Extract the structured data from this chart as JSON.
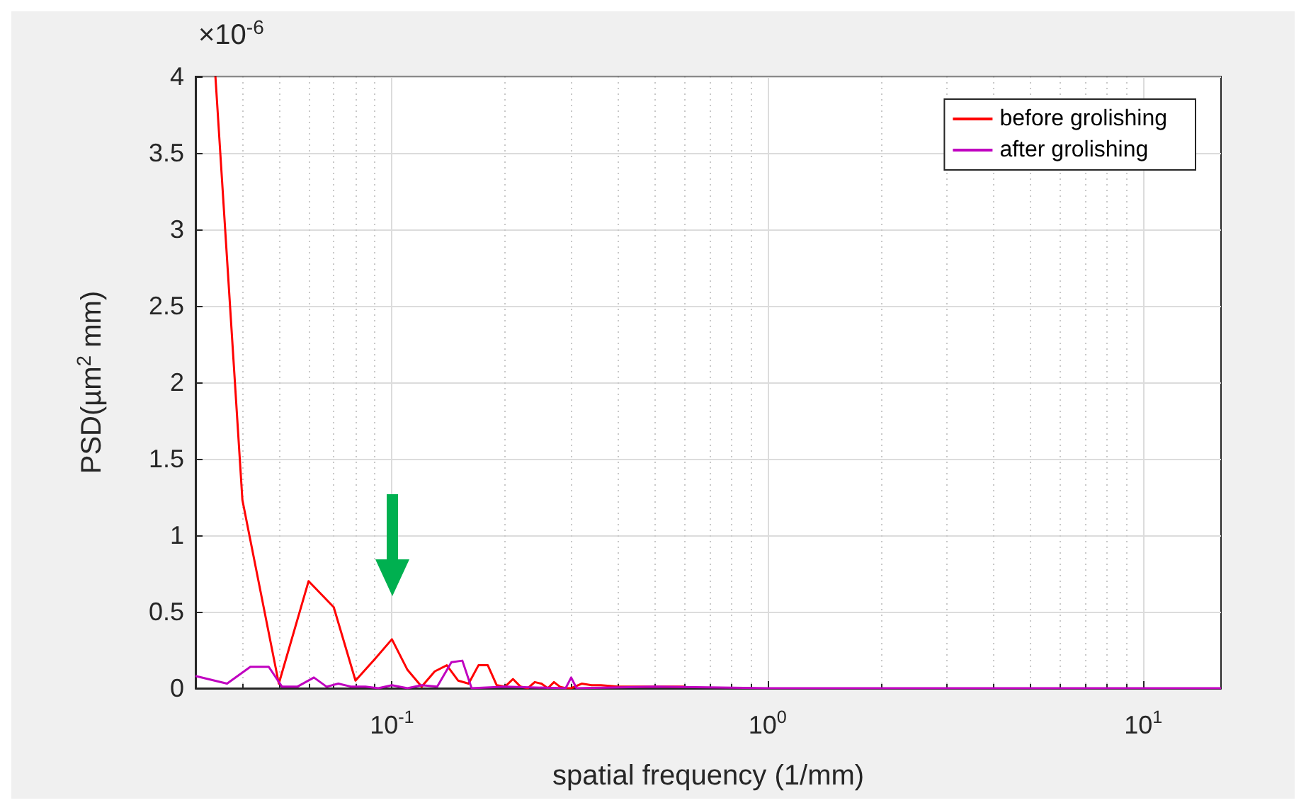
{
  "chart_data": {
    "type": "line",
    "xlabel": "spatial frequency (1/mm)",
    "ylabel": "PSD(µm$^{2}$ mm)",
    "log": "x",
    "xlim": [
      0.03,
      16.1
    ],
    "ylim": [
      0,
      4
    ],
    "xticks": [
      {
        "value": 0.03,
        "label": null
      },
      {
        "value": 0.04,
        "label": null
      },
      {
        "value": 0.05,
        "label": null
      },
      {
        "value": 0.06,
        "label": null
      },
      {
        "value": 0.07,
        "label": null
      },
      {
        "value": 0.08,
        "label": null
      },
      {
        "value": 0.09,
        "label": null
      },
      {
        "value": 0.1,
        "label": "10$^{-1}$"
      },
      {
        "value": 0.2,
        "label": null
      },
      {
        "value": 0.3,
        "label": null
      },
      {
        "value": 0.4,
        "label": null
      },
      {
        "value": 0.5,
        "label": null
      },
      {
        "value": 0.6,
        "label": null
      },
      {
        "value": 0.7,
        "label": null
      },
      {
        "value": 0.8,
        "label": null
      },
      {
        "value": 0.9,
        "label": null
      },
      {
        "value": 1,
        "label": "10$^{0}$"
      },
      {
        "value": 2,
        "label": null
      },
      {
        "value": 3,
        "label": null
      },
      {
        "value": 4,
        "label": null
      },
      {
        "value": 5,
        "label": null
      },
      {
        "value": 6,
        "label": null
      },
      {
        "value": 7,
        "label": null
      },
      {
        "value": 8,
        "label": null
      },
      {
        "value": 9,
        "label": null
      },
      {
        "value": 10,
        "label": "10$^{1}$"
      }
    ],
    "yticks": [
      0,
      0.5,
      1,
      1.5,
      2,
      2.5,
      3,
      3.5,
      4
    ],
    "annotations": [
      "×10$^{-6}$"
    ],
    "grid": true,
    "legend": "top right",
    "marker": "none",
    "line_style": "solid",
    "series": [
      {
        "name": "before grolishing",
        "color": "#ff0000",
        "x": [
          0.0339,
          0.04,
          0.05,
          0.06,
          0.07,
          0.08,
          0.09,
          0.1,
          0.11,
          0.12,
          0.13,
          0.14,
          0.15,
          0.16,
          0.17,
          0.18,
          0.19,
          0.2,
          0.21,
          0.22,
          0.23,
          0.24,
          0.25,
          0.26,
          0.27,
          0.28,
          0.29,
          0.3,
          0.32,
          0.34,
          0.36,
          0.4,
          0.5,
          0.6
        ],
        "values": [
          4,
          1.23,
          0.03,
          0.7,
          0.53,
          0.05,
          0.19,
          0.32,
          0.12,
          0.01,
          0.11,
          0.15,
          0.05,
          0.03,
          0.15,
          0.15,
          0.02,
          0.01,
          0.06,
          0.01,
          0,
          0.04,
          0.03,
          0,
          0.04,
          0.01,
          0,
          0,
          0.03,
          0.02,
          0.02,
          0.01,
          0.01,
          0.01
        ]
      },
      {
        "name": "after grolishing",
        "color": "#c000c0",
        "x": [
          0.03,
          0.0364,
          0.042,
          0.047,
          0.051,
          0.056,
          0.062,
          0.067,
          0.072,
          0.078,
          0.085,
          0.092,
          0.1,
          0.11,
          0.12,
          0.132,
          0.144,
          0.154,
          0.163,
          0.2,
          0.29,
          0.3,
          0.31,
          0.5,
          1,
          16.1
        ],
        "values": [
          0.08,
          0.03,
          0.14,
          0.14,
          0.01,
          0.01,
          0.07,
          0.01,
          0.03,
          0.01,
          0.01,
          0,
          0.02,
          0,
          0.02,
          0.01,
          0.17,
          0.18,
          0,
          0.01,
          0,
          0.07,
          0,
          0.01,
          0,
          0
        ]
      }
    ]
  }
}
